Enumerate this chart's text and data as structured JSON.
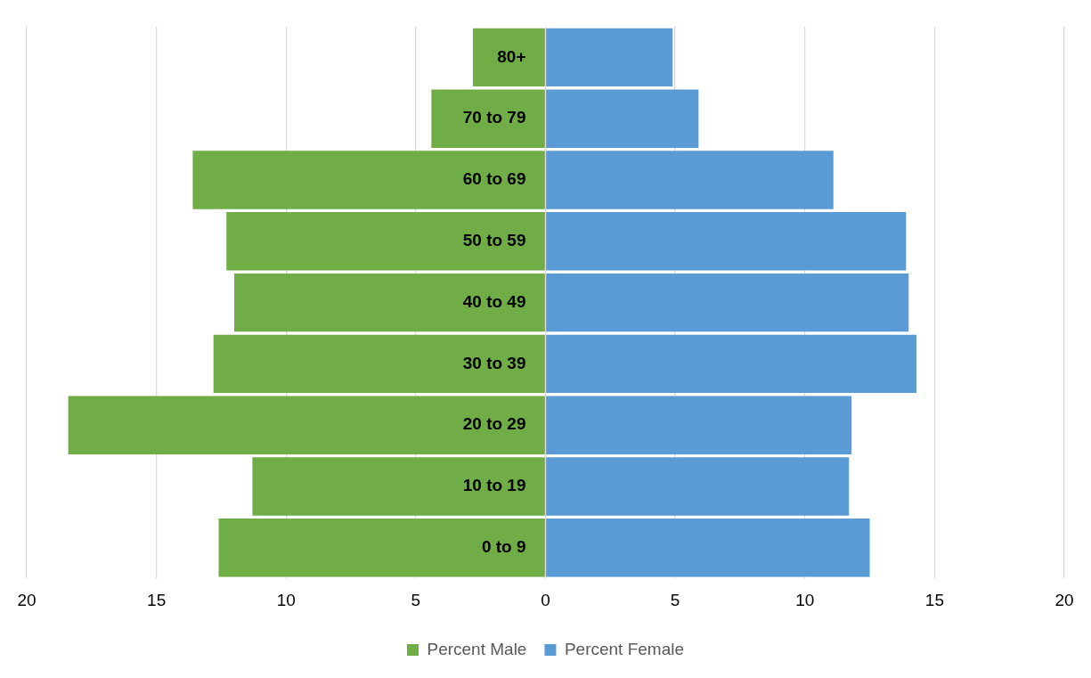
{
  "chart_data": {
    "type": "bar",
    "orientation": "horizontal",
    "stacked": true,
    "categories": [
      "80+",
      "70 to 79",
      "60 to 69",
      "50 to 59",
      "40 to 49",
      "30 to 39",
      "20 to 29",
      "10 to 19",
      "0 to 9"
    ],
    "series": [
      {
        "name": "Percent Male",
        "color": "#70ad47",
        "values": [
          -2.8,
          -4.4,
          -13.6,
          -12.3,
          -12.0,
          -12.8,
          -18.4,
          -11.3,
          -12.6
        ]
      },
      {
        "name": "Percent Female",
        "color": "#5b9bd5",
        "values": [
          4.9,
          5.9,
          11.1,
          13.9,
          14.0,
          14.3,
          11.8,
          11.7,
          12.5
        ]
      }
    ],
    "xlim": [
      -20,
      20
    ],
    "xticks": [
      {
        "value": -20,
        "label": "20"
      },
      {
        "value": -15,
        "label": "15"
      },
      {
        "value": -10,
        "label": "10"
      },
      {
        "value": -5,
        "label": "5"
      },
      0,
      5,
      10,
      15,
      20
    ],
    "grid": "x",
    "legend": "bottom"
  }
}
